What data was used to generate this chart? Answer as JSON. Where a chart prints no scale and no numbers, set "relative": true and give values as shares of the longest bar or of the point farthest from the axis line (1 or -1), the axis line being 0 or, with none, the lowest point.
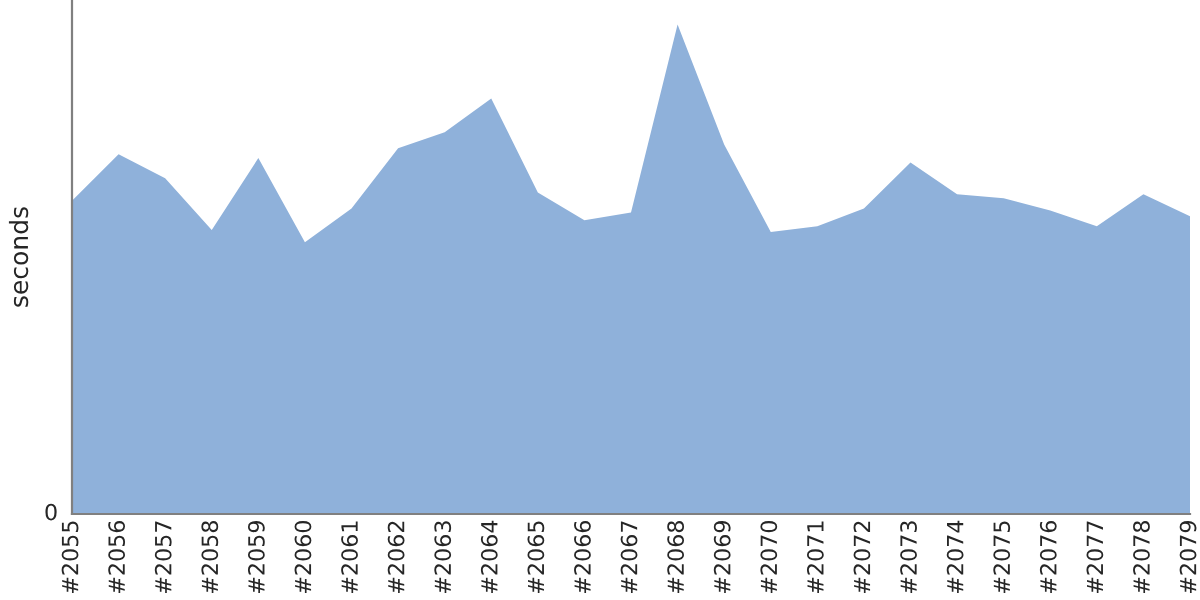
{
  "chart_data": {
    "type": "area",
    "relative": true,
    "ylabel": "seconds",
    "annotations": [
      "0"
    ],
    "categories": [
      "#2055",
      "#2056",
      "#2057",
      "#2058",
      "#2059",
      "#2060",
      "#2061",
      "#2062",
      "#2063",
      "#2064",
      "#2065",
      "#2066",
      "#2067",
      "#2068",
      "#2069",
      "#2070",
      "#2071",
      "#2072",
      "#2073",
      "#2074",
      "#2075",
      "#2076",
      "#2077",
      "#2078",
      "#2079"
    ],
    "series": [
      {
        "color": "#8fb1da",
        "values": [
          0.64,
          0.735,
          0.686,
          0.58,
          0.727,
          0.555,
          0.624,
          0.747,
          0.78,
          0.849,
          0.657,
          0.6,
          0.616,
          1,
          0.755,
          0.576,
          0.588,
          0.624,
          0.718,
          0.653,
          0.645,
          0.62,
          0.588,
          0.653,
          0.608
        ]
      }
    ],
    "grid": false,
    "legend": false
  }
}
